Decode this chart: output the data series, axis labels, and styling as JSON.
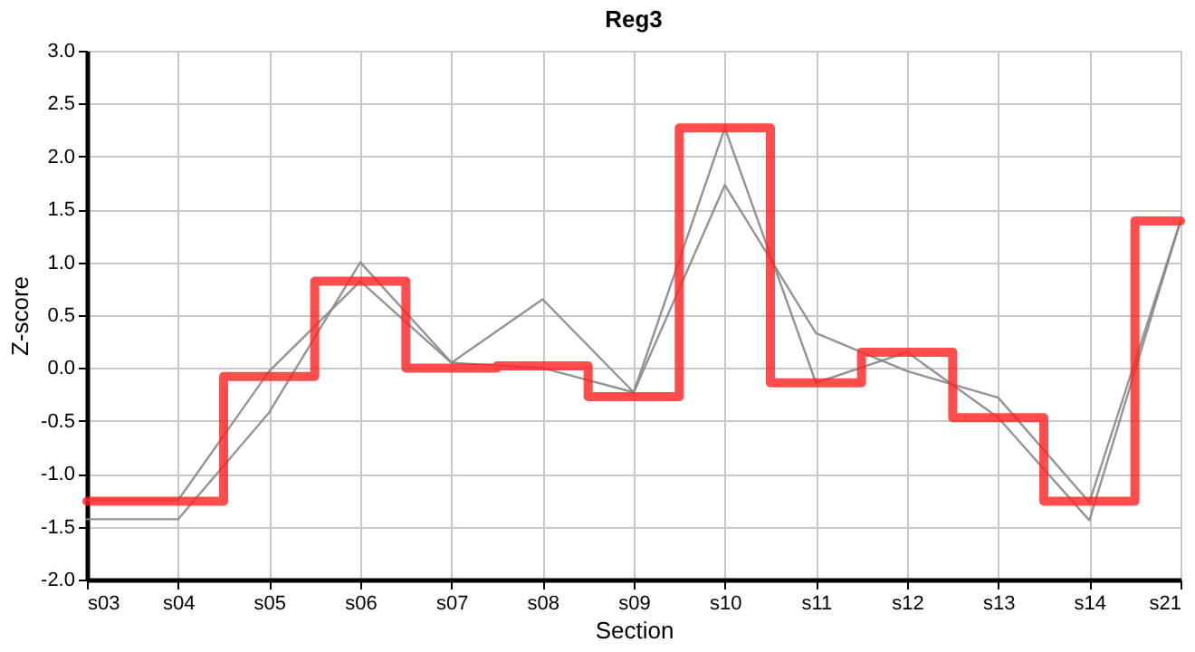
{
  "chart_data": {
    "type": "line",
    "title": "Reg3",
    "xlabel": "Section",
    "ylabel": "Z-score",
    "categories": [
      "s03",
      "s04",
      "s05",
      "s06",
      "s07",
      "s08",
      "s09",
      "s10",
      "s11",
      "s12",
      "s13",
      "s14",
      "s21"
    ],
    "series": [
      {
        "type": "line",
        "color": "#888888",
        "values": [
          -1.43,
          -1.43,
          -0.42,
          1.0,
          0.05,
          0.65,
          -0.23,
          2.27,
          -0.14,
          0.15,
          -0.47,
          -1.44,
          1.39
        ]
      },
      {
        "type": "line",
        "color": "#888888",
        "values": [
          -1.25,
          -1.25,
          -0.03,
          0.82,
          0.05,
          0.0,
          -0.23,
          1.73,
          0.33,
          -0.03,
          -0.28,
          -1.27,
          1.39
        ]
      },
      {
        "type": "step",
        "color": "#ff2020",
        "values": [
          -1.26,
          -1.26,
          -0.08,
          0.82,
          0.0,
          0.02,
          -0.27,
          2.27,
          -0.14,
          0.15,
          -0.47,
          -1.26,
          1.39
        ]
      }
    ],
    "ylim": [
      -2.0,
      3.0
    ],
    "yticks": [
      {
        "value": -2,
        "label": "-2.0"
      },
      {
        "value": -1.5,
        "label": "-1.5"
      },
      {
        "value": -1,
        "label": "-1.0"
      },
      {
        "value": -0.5,
        "label": "-0.5"
      },
      {
        "value": 0,
        "label": "0.0"
      },
      {
        "value": 0.5,
        "label": "0.5"
      },
      {
        "value": 1,
        "label": "1.0"
      },
      {
        "value": 1.5,
        "label": "1.5"
      },
      {
        "value": 2,
        "label": "2.0"
      },
      {
        "value": 2.5,
        "label": "2.5"
      },
      {
        "value": 3,
        "label": "3.0"
      }
    ],
    "grid": true,
    "legend": false
  }
}
